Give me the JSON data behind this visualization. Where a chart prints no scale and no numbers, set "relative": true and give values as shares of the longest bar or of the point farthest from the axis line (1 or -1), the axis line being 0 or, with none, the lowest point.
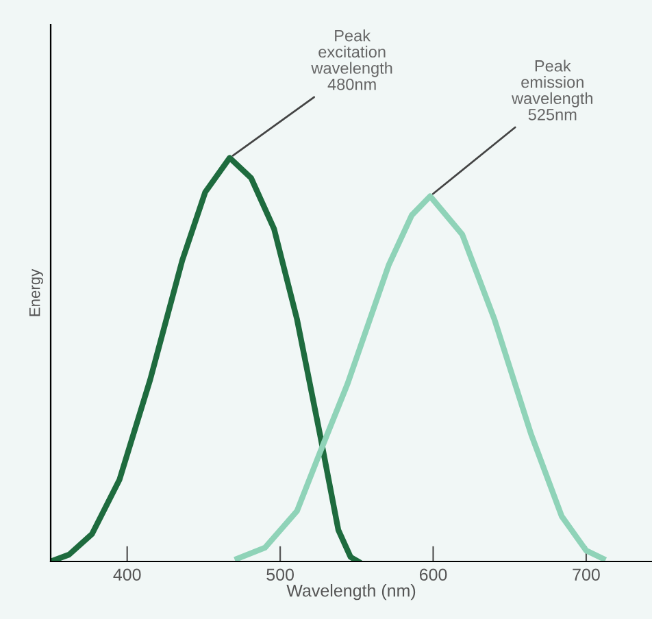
{
  "chart_data": {
    "type": "line",
    "relative": true,
    "xlabel": "Wavelength (nm)",
    "ylabel": "Energy",
    "xlim": [
      350,
      743
    ],
    "xticks": [
      400,
      500,
      600,
      700
    ],
    "grid": false,
    "legend": false,
    "marker": "none",
    "line_style": "solid",
    "tick_labels": "x",
    "series": [
      {
        "color": "#1e6b3e",
        "x": [
          350,
          362,
          377,
          395,
          415,
          436,
          451,
          467,
          481,
          496,
          511,
          526,
          538,
          546,
          551
        ],
        "values": [
          0,
          0.017,
          0.068,
          0.203,
          0.45,
          0.746,
          0.915,
          1,
          0.95,
          0.824,
          0.6,
          0.315,
          0.078,
          0.011,
          0
        ]
      },
      {
        "color": "#8fd3b8",
        "x": [
          472,
          490,
          511,
          526,
          544,
          571,
          586,
          598,
          619,
          640,
          664,
          684,
          700,
          711
        ],
        "values": [
          0.007,
          0.034,
          0.125,
          0.27,
          0.44,
          0.735,
          0.858,
          0.905,
          0.81,
          0.6,
          0.315,
          0.112,
          0.027,
          0.007
        ]
      }
    ],
    "annotations": [
      {
        "text": "Peak\nexcitation\nwavelength\n480nm",
        "x": 467,
        "y": 1
      },
      {
        "text": "Peak\nemission\nwavelength\n525nm",
        "x": 598,
        "y": 0.905
      }
    ]
  }
}
